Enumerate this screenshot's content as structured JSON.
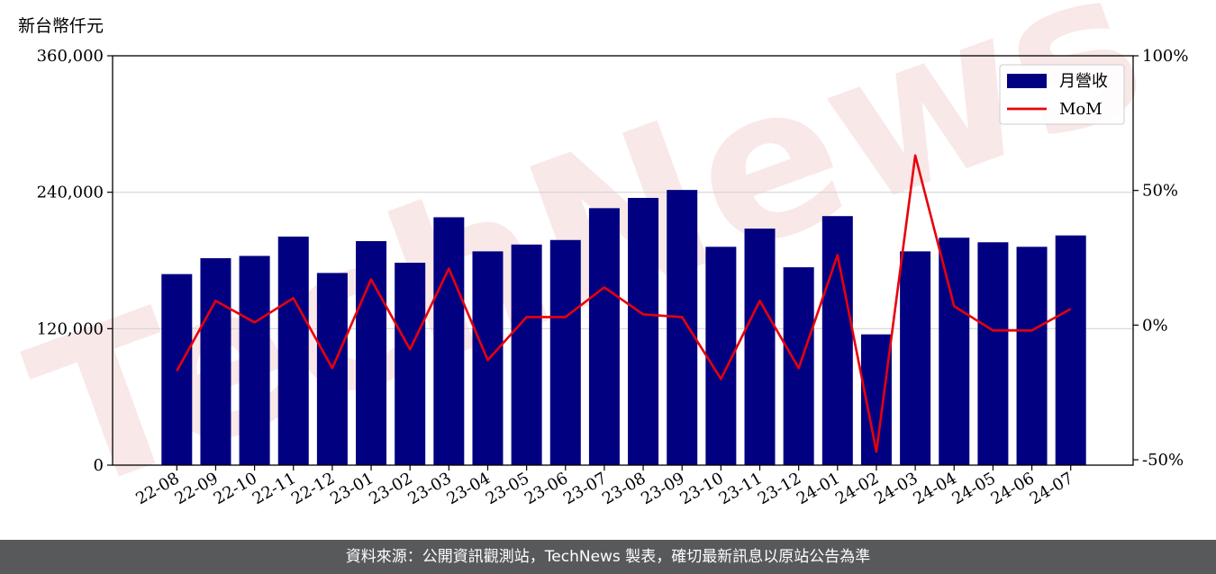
{
  "chart_data": {
    "type": "bar",
    "unit_label": "新台幣仟元",
    "categories": [
      "22-08",
      "22-09",
      "22-10",
      "22-11",
      "22-12",
      "23-01",
      "23-02",
      "23-03",
      "23-04",
      "23-05",
      "23-06",
      "23-07",
      "23-08",
      "23-09",
      "23-10",
      "23-11",
      "23-12",
      "24-01",
      "24-02",
      "24-03",
      "24-04",
      "24-05",
      "24-06",
      "24-07"
    ],
    "series": [
      {
        "name": "月營收",
        "type": "bar",
        "axis": "left",
        "color": "#000080",
        "values": [
          168000,
          182000,
          184000,
          201000,
          169000,
          197000,
          178000,
          218000,
          188000,
          194000,
          198000,
          226000,
          235000,
          242000,
          192000,
          208000,
          174000,
          219000,
          115000,
          188000,
          200000,
          196000,
          192000,
          202000
        ]
      },
      {
        "name": "MoM",
        "type": "line",
        "axis": "right",
        "color": "#e8000b",
        "values": [
          -17,
          9,
          1,
          10,
          -16,
          17,
          -9,
          21,
          -13,
          3,
          3,
          14,
          4,
          3,
          -20,
          9,
          -16,
          26,
          -47,
          63,
          7,
          -2,
          -2,
          6
        ]
      }
    ],
    "yleft": {
      "lim": [
        0,
        360000
      ],
      "ticks": [
        0,
        120000,
        240000,
        360000
      ],
      "tick_labels": [
        "0",
        "120,000",
        "240,000",
        "360,000"
      ]
    },
    "yright": {
      "lim": [
        -52,
        100
      ],
      "ticks": [
        -50,
        0,
        50,
        100
      ],
      "tick_labels": [
        "-50%",
        "0%",
        "50%",
        "100%"
      ]
    },
    "grid": "horizontal",
    "legend_position": "top-right"
  },
  "watermark": "TechNews",
  "footer": {
    "text": "資料來源：公開資訊觀測站，TechNews 製表，確切最新訊息以原站公告為準"
  }
}
